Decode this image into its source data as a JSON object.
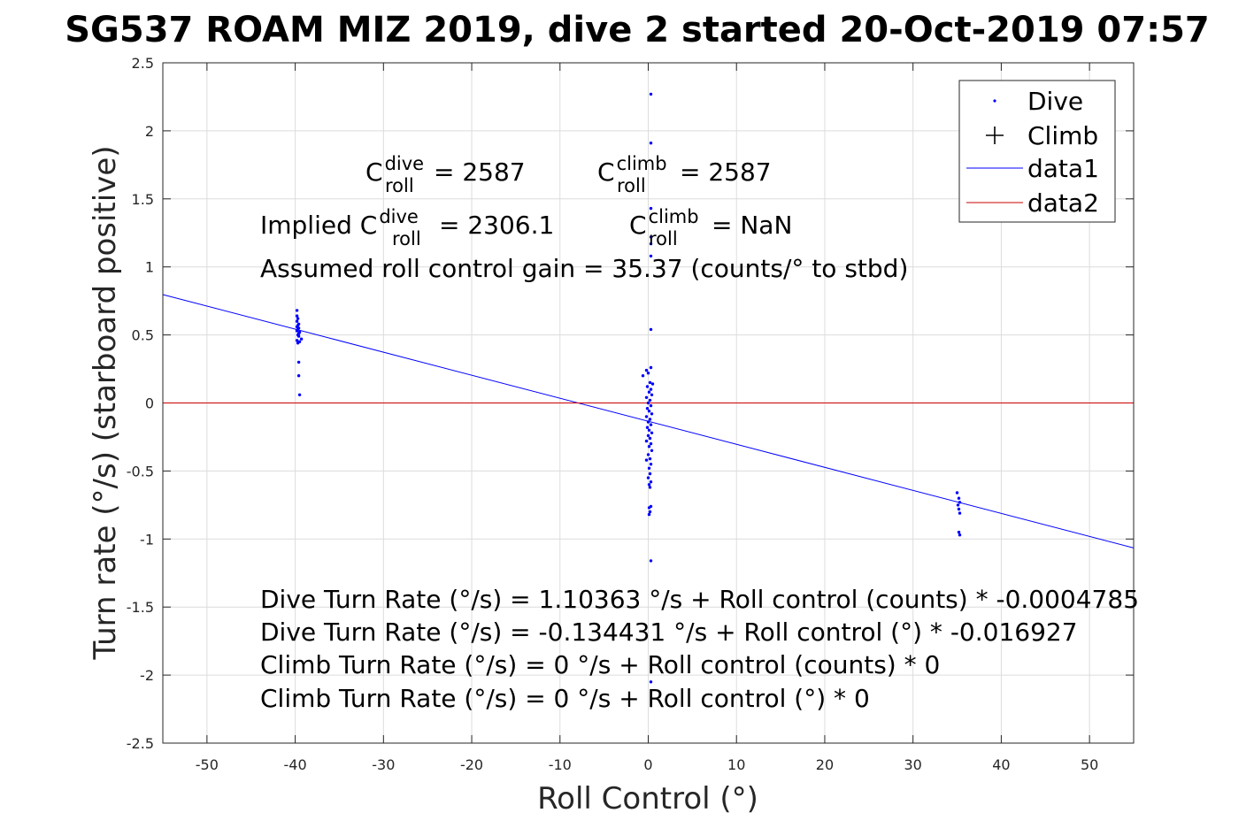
{
  "chart_data": {
    "type": "scatter",
    "title": "SG537 ROAM MIZ 2019, dive 2 started 20-Oct-2019 07:57",
    "xlabel": "Roll Control (°)",
    "ylabel": "Turn rate (°/s) (starboard positive)",
    "xlim": [
      -55,
      55
    ],
    "ylim": [
      -2.5,
      2.5
    ],
    "xticks": [
      -50,
      -40,
      -30,
      -20,
      -10,
      0,
      10,
      20,
      30,
      40,
      50
    ],
    "yticks": [
      2.5,
      2,
      1.5,
      1,
      0.5,
      0,
      -0.5,
      -1,
      -1.5,
      -2,
      -2.5
    ],
    "grid": true,
    "legend_position": "top-right",
    "legend": [
      "Dive",
      "Climb",
      "data1",
      "data2"
    ],
    "series": [
      {
        "name": "Dive",
        "marker": "dot",
        "color": "#0000ff",
        "points": [
          [
            -39.8,
            0.68
          ],
          [
            -39.8,
            0.64
          ],
          [
            -39.7,
            0.62
          ],
          [
            -39.8,
            0.6
          ],
          [
            -39.6,
            0.58
          ],
          [
            -39.7,
            0.57
          ],
          [
            -39.8,
            0.56
          ],
          [
            -39.6,
            0.55
          ],
          [
            -39.7,
            0.54
          ],
          [
            -39.8,
            0.53
          ],
          [
            -39.5,
            0.52
          ],
          [
            -39.6,
            0.51
          ],
          [
            -39.7,
            0.5
          ],
          [
            -39.6,
            0.49
          ],
          [
            -39.3,
            0.47
          ],
          [
            -39.8,
            0.46
          ],
          [
            -39.5,
            0.45
          ],
          [
            -39.7,
            0.44
          ],
          [
            -39.6,
            0.3
          ],
          [
            -39.6,
            0.2
          ],
          [
            -39.5,
            0.06
          ],
          [
            0.3,
            2.27
          ],
          [
            0.3,
            1.91
          ],
          [
            0.3,
            1.43
          ],
          [
            0.3,
            1.22
          ],
          [
            0.3,
            1.17
          ],
          [
            0.3,
            1.08
          ],
          [
            0.3,
            0.54
          ],
          [
            0.3,
            0.26
          ],
          [
            -0.2,
            0.24
          ],
          [
            0.0,
            0.22
          ],
          [
            -0.6,
            0.2
          ],
          [
            0.2,
            0.15
          ],
          [
            0.5,
            0.14
          ],
          [
            -0.1,
            0.12
          ],
          [
            0.3,
            0.1
          ],
          [
            0.1,
            0.08
          ],
          [
            0.4,
            0.06
          ],
          [
            -0.2,
            0.04
          ],
          [
            0.2,
            0.02
          ],
          [
            0.0,
            0.0
          ],
          [
            0.3,
            -0.02
          ],
          [
            -0.1,
            -0.04
          ],
          [
            0.1,
            -0.06
          ],
          [
            0.4,
            -0.08
          ],
          [
            -0.2,
            -0.1
          ],
          [
            0.2,
            -0.12
          ],
          [
            0.0,
            -0.14
          ],
          [
            0.3,
            -0.16
          ],
          [
            -0.1,
            -0.18
          ],
          [
            0.1,
            -0.2
          ],
          [
            0.4,
            -0.22
          ],
          [
            0.0,
            -0.24
          ],
          [
            0.2,
            -0.26
          ],
          [
            -0.2,
            -0.28
          ],
          [
            0.3,
            -0.3
          ],
          [
            0.1,
            -0.32
          ],
          [
            0.4,
            -0.35
          ],
          [
            0.0,
            -0.38
          ],
          [
            0.2,
            -0.41
          ],
          [
            -0.2,
            -0.42
          ],
          [
            0.3,
            -0.45
          ],
          [
            0.1,
            -0.48
          ],
          [
            0.2,
            -0.52
          ],
          [
            0.0,
            -0.55
          ],
          [
            0.3,
            -0.58
          ],
          [
            0.1,
            -0.6
          ],
          [
            0.2,
            -0.62
          ],
          [
            0.3,
            -0.76
          ],
          [
            0.1,
            -0.77
          ],
          [
            0.2,
            -0.8
          ],
          [
            0.1,
            -0.82
          ],
          [
            0.3,
            -1.16
          ],
          [
            0.3,
            -2.05
          ],
          [
            35.0,
            -0.66
          ],
          [
            35.2,
            -0.7
          ],
          [
            35.3,
            -0.73
          ],
          [
            35.1,
            -0.75
          ],
          [
            35.2,
            -0.78
          ],
          [
            35.3,
            -0.81
          ],
          [
            35.2,
            -0.95
          ],
          [
            35.3,
            -0.97
          ]
        ]
      },
      {
        "name": "Climb",
        "marker": "plus",
        "color": "#000000",
        "points": []
      },
      {
        "name": "data1",
        "color": "#0000ff",
        "x": [
          -55,
          55
        ],
        "y": [
          0.7966,
          -1.0655
        ]
      },
      {
        "name": "data2",
        "color": "#cc0000",
        "x": [
          -55,
          55
        ],
        "y": [
          0,
          0
        ]
      }
    ],
    "annotations": {
      "top_line1": {
        "a_base": "C",
        "a_sup": "dive",
        "a_sub": "roll",
        "a_eq": " = 2587",
        "b_base": "C",
        "b_sup": "climb",
        "b_sub": "roll",
        "b_eq": " = 2587"
      },
      "top_line2": {
        "prefix": "Implied C",
        "a_sup": "dive",
        "a_sub": "roll",
        "a_eq": " = 2306.1",
        "b_base": "C",
        "b_sup": "climb",
        "b_sub": "roll",
        "b_eq": " = NaN"
      },
      "top_line3": "Assumed roll control gain = 35.37 (counts/° to stbd)",
      "bottom_lines": [
        "Dive Turn Rate (°/s) = 1.10363 °/s + Roll control (counts) * -0.0004785",
        "Dive Turn Rate (°/s) = -0.134431 °/s + Roll control (°) * -0.016927",
        "Climb Turn Rate (°/s) = 0 °/s + Roll control (counts) * 0",
        "Climb Turn Rate (°/s) = 0 °/s + Roll control (°) * 0"
      ]
    }
  }
}
